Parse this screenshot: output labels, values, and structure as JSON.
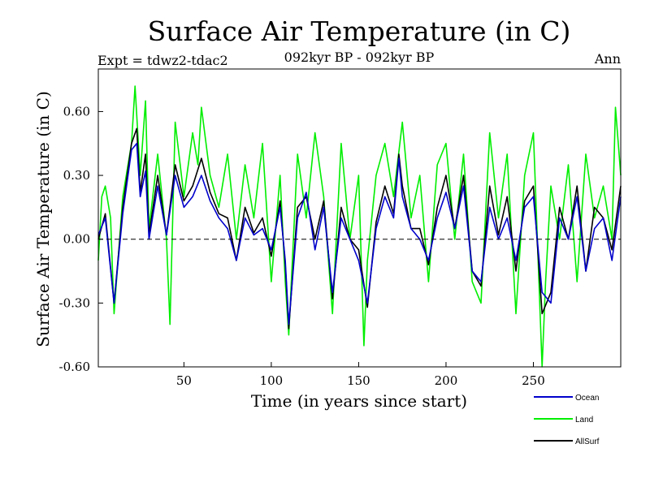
{
  "chart_data": {
    "type": "line",
    "title": "Surface Air Temperature (in C)",
    "subtitle": "092kyr BP - 092kyr BP",
    "left_label": "Expt = tdwz2-tdac2",
    "right_label": "Ann",
    "xlabel": "Time (in years since start)",
    "ylabel": "Surface Air Temperature (in C)",
    "xlim": [
      1,
      300
    ],
    "ylim": [
      -0.6,
      0.8
    ],
    "x_ticks": [
      50,
      100,
      150,
      200,
      250
    ],
    "y_ticks": [
      "-0.60",
      "-0.30",
      "0.00",
      "0.30",
      "0.60"
    ],
    "y_tick_values": [
      -0.6,
      -0.3,
      0.0,
      0.3,
      0.6
    ],
    "zero_line": true,
    "grid": false,
    "legend_position": "bottom-right",
    "series": [
      {
        "name": "Ocean",
        "color": "#0000cc",
        "x": [
          1,
          5,
          10,
          15,
          20,
          23,
          25,
          28,
          30,
          35,
          40,
          45,
          50,
          55,
          60,
          65,
          70,
          75,
          80,
          85,
          90,
          95,
          100,
          105,
          108,
          110,
          115,
          120,
          125,
          130,
          135,
          140,
          145,
          150,
          155,
          160,
          165,
          170,
          173,
          175,
          180,
          185,
          190,
          195,
          200,
          205,
          210,
          215,
          220,
          225,
          230,
          235,
          240,
          245,
          250,
          255,
          260,
          265,
          270,
          275,
          280,
          285,
          290,
          295,
          300
        ],
        "y": [
          0.02,
          0.1,
          -0.3,
          0.12,
          0.42,
          0.45,
          0.2,
          0.32,
          0.0,
          0.25,
          0.02,
          0.3,
          0.15,
          0.2,
          0.3,
          0.18,
          0.1,
          0.05,
          -0.1,
          0.1,
          0.02,
          0.05,
          -0.05,
          0.15,
          -0.1,
          -0.4,
          0.1,
          0.22,
          -0.05,
          0.15,
          -0.25,
          0.1,
          0.0,
          -0.1,
          -0.3,
          0.05,
          0.2,
          0.1,
          0.38,
          0.2,
          0.05,
          0.0,
          -0.1,
          0.1,
          0.22,
          0.05,
          0.25,
          -0.15,
          -0.2,
          0.15,
          0.0,
          0.1,
          -0.1,
          0.15,
          0.2,
          -0.25,
          -0.3,
          0.1,
          0.0,
          0.2,
          -0.15,
          0.05,
          0.1,
          -0.1,
          0.2
        ]
      },
      {
        "name": "Land",
        "color": "#00ee00",
        "x": [
          1,
          3,
          5,
          8,
          10,
          15,
          20,
          22,
          25,
          28,
          30,
          35,
          40,
          42,
          45,
          50,
          55,
          58,
          60,
          65,
          70,
          75,
          80,
          85,
          90,
          95,
          100,
          105,
          108,
          110,
          115,
          120,
          125,
          130,
          135,
          140,
          145,
          150,
          153,
          155,
          160,
          165,
          170,
          175,
          180,
          185,
          190,
          195,
          200,
          205,
          210,
          215,
          220,
          225,
          230,
          235,
          240,
          245,
          250,
          255,
          257,
          260,
          265,
          270,
          275,
          280,
          285,
          290,
          295,
          297,
          300
        ],
        "y": [
          -0.1,
          0.2,
          0.25,
          0.1,
          -0.35,
          0.2,
          0.45,
          0.72,
          0.3,
          0.65,
          0.05,
          0.4,
          0.0,
          -0.4,
          0.55,
          0.2,
          0.5,
          0.35,
          0.62,
          0.3,
          0.15,
          0.4,
          0.0,
          0.35,
          0.1,
          0.45,
          -0.2,
          0.3,
          -0.2,
          -0.45,
          0.4,
          0.1,
          0.5,
          0.2,
          -0.35,
          0.45,
          0.0,
          0.3,
          -0.5,
          -0.1,
          0.3,
          0.45,
          0.2,
          0.55,
          0.1,
          0.3,
          -0.2,
          0.35,
          0.45,
          0.0,
          0.4,
          -0.2,
          -0.3,
          0.5,
          0.1,
          0.4,
          -0.35,
          0.3,
          0.5,
          -0.6,
          -0.2,
          0.25,
          0.0,
          0.35,
          -0.2,
          0.4,
          0.1,
          0.25,
          0.0,
          0.62,
          0.3
        ]
      },
      {
        "name": "AllSurf",
        "color": "#000000",
        "x": [
          1,
          5,
          10,
          15,
          20,
          23,
          25,
          28,
          30,
          35,
          40,
          45,
          50,
          55,
          60,
          65,
          70,
          75,
          80,
          85,
          90,
          95,
          100,
          105,
          108,
          110,
          115,
          120,
          125,
          130,
          135,
          140,
          145,
          150,
          155,
          160,
          165,
          170,
          173,
          175,
          180,
          185,
          190,
          195,
          200,
          205,
          210,
          215,
          220,
          225,
          230,
          235,
          240,
          245,
          250,
          255,
          260,
          265,
          270,
          275,
          280,
          285,
          290,
          295,
          300
        ],
        "y": [
          0.0,
          0.12,
          -0.3,
          0.15,
          0.45,
          0.52,
          0.22,
          0.4,
          0.02,
          0.3,
          0.02,
          0.35,
          0.18,
          0.25,
          0.38,
          0.22,
          0.12,
          0.1,
          -0.1,
          0.15,
          0.03,
          0.1,
          -0.08,
          0.18,
          -0.12,
          -0.42,
          0.15,
          0.2,
          0.0,
          0.18,
          -0.28,
          0.15,
          0.0,
          -0.05,
          -0.32,
          0.08,
          0.25,
          0.12,
          0.4,
          0.25,
          0.05,
          0.05,
          -0.12,
          0.15,
          0.3,
          0.05,
          0.3,
          -0.15,
          -0.22,
          0.25,
          0.02,
          0.2,
          -0.15,
          0.18,
          0.25,
          -0.35,
          -0.25,
          0.15,
          0.0,
          0.25,
          -0.15,
          0.15,
          0.1,
          -0.05,
          0.25
        ]
      }
    ]
  }
}
